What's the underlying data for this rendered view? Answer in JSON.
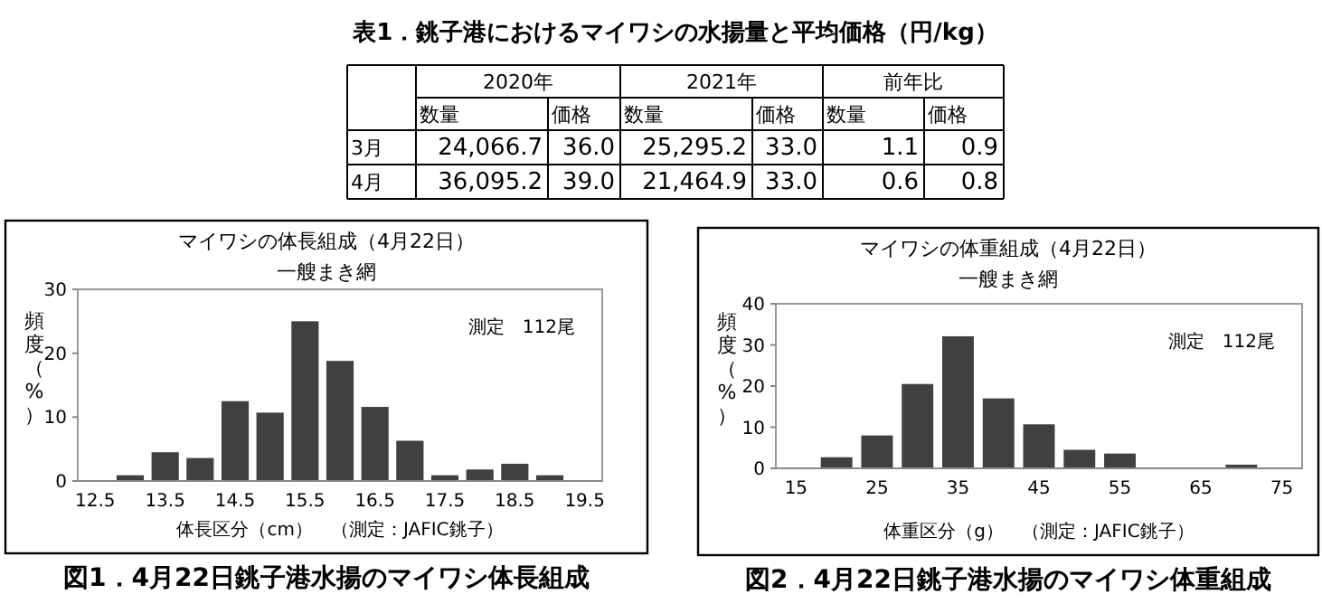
{
  "chart_data": [
    {
      "type": "other",
      "title": "表1．銚子港におけるマイワシの水揚量と平均価格（円/kg）",
      "cell_labels": [
        [
          null,
          "2020年",
          null,
          "2021年",
          null,
          "前年比",
          null
        ],
        [
          null,
          "数量",
          "価格",
          "数量",
          "価格",
          "数量",
          "価格"
        ],
        [
          "3月",
          "24,066.7",
          "36.0",
          "25,295.2",
          "33.0",
          "1.1",
          "0.9"
        ],
        [
          "4月",
          "36,095.2",
          "39.0",
          "21,464.9",
          "33.0",
          "0.6",
          "0.8"
        ]
      ]
    },
    {
      "type": "bar",
      "title": "マイワシの体長組成（4月22日）",
      "subtitle": "一艘まき網",
      "xlabel": "体長区分（cm）　（測定：JAFIC銚子）",
      "ylabel": "頻度（%）",
      "categories": [
        "12.5",
        null,
        "13.5",
        null,
        "14.5",
        null,
        "15.5",
        null,
        "16.5",
        null,
        "17.5",
        null,
        "18.5",
        null,
        "19.5"
      ],
      "values": [
        0,
        0.9,
        4.5,
        3.6,
        12.5,
        10.7,
        25.0,
        18.8,
        11.6,
        6.3,
        0.9,
        1.8,
        2.7,
        0.9,
        0
      ],
      "color": "#404040",
      "ylim": [
        0,
        30
      ],
      "yticks": [
        0,
        10,
        20,
        30
      ],
      "grid": false,
      "annotations": [
        "測定　112尾",
        "図1．4月22日銚子港水揚のマイワシ体長組成"
      ]
    },
    {
      "type": "bar",
      "title": "マイワシの体重組成（4月22日）",
      "subtitle": "一艘まき網",
      "xlabel": "体重区分（g）　（測定：JAFIC銚子）",
      "ylabel": "頻度（%）",
      "categories": [
        "15",
        null,
        "25",
        null,
        "35",
        null,
        "45",
        null,
        "55",
        null,
        "65",
        null,
        "75"
      ],
      "values": [
        0,
        2.7,
        8.0,
        20.5,
        32.1,
        17.0,
        10.7,
        4.5,
        3.6,
        0,
        0,
        0.9,
        0
      ],
      "color": "#404040",
      "ylim": [
        0,
        40
      ],
      "yticks": [
        0,
        10,
        20,
        30,
        40
      ],
      "grid": false,
      "annotations": [
        "測定　112尾",
        "図2．4月22日銚子港水揚のマイワシ体重組成"
      ]
    }
  ]
}
